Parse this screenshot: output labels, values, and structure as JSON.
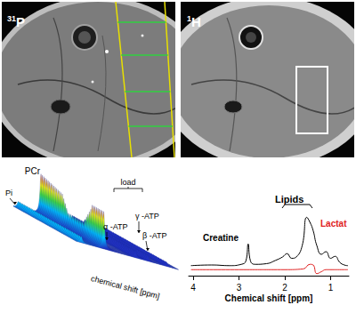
{
  "panels": [
    {
      "label": {
        "mass": "31",
        "symbol": "P"
      }
    },
    {
      "label": {
        "mass": "1",
        "symbol": "H"
      }
    }
  ],
  "waterfall": {
    "peaks": [
      "Pi",
      "PCr",
      "γ -ATP",
      "α -ATP",
      "β -ATP"
    ],
    "bracket": "load",
    "xlabel": "chemical shift [ppm]"
  },
  "chart_data": {
    "type": "line",
    "xlabel": "Chemical shift [ppm]",
    "xlim": [
      4.1,
      0.6
    ],
    "xticks": [
      4,
      3,
      2,
      1
    ],
    "ylim": [
      0,
      10
    ],
    "tick_labels": "x",
    "grid": false,
    "annotations": [
      {
        "text": "Creatine"
      },
      {
        "text": "Lipids"
      },
      {
        "text": "Lactat",
        "color": "#e02020"
      }
    ],
    "series": [
      {
        "color": "#000000",
        "x": [
          4.05,
          3.6,
          3.2,
          2.95,
          2.85,
          2.8,
          2.75,
          2.65,
          2.4,
          2.2,
          2.05,
          1.95,
          1.85,
          1.75,
          1.62,
          1.52,
          1.45,
          1.38,
          1.3,
          1.2,
          1.1,
          1.0,
          0.9,
          0.8,
          0.7,
          0.62
        ],
        "values": [
          1.5,
          1.6,
          1.5,
          1.7,
          2.2,
          4.75,
          2.2,
          1.7,
          1.8,
          2.3,
          2.8,
          3.3,
          2.6,
          2.8,
          4.5,
          8.75,
          8.0,
          6.75,
          4.5,
          3.2,
          3.6,
          2.6,
          2.9,
          2.0,
          1.6,
          1.5
        ]
      },
      {
        "color": "#e02020",
        "x": [
          4.05,
          3.0,
          2.0,
          1.6,
          1.45,
          1.38,
          1.3,
          1.2,
          1.1,
          0.62
        ],
        "values": [
          0.9,
          0.9,
          0.9,
          1.0,
          1.7,
          1.6,
          0.3,
          0.6,
          0.9,
          0.9
        ]
      }
    ]
  }
}
